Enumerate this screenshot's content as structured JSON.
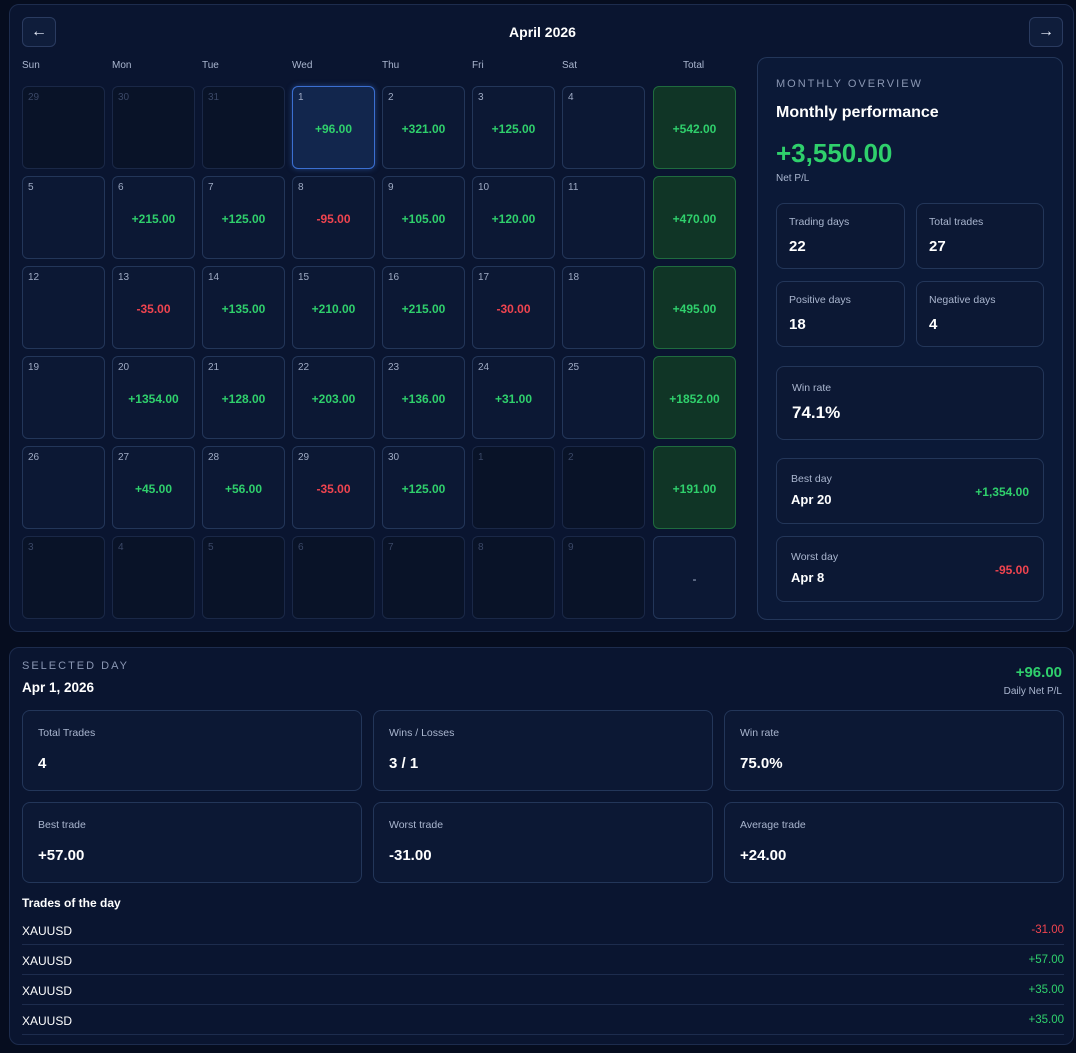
{
  "header": {
    "month_title": "April 2026",
    "prev_label": "←",
    "next_label": "→"
  },
  "weekdays": [
    "Sun",
    "Mon",
    "Tue",
    "Wed",
    "Thu",
    "Fri",
    "Sat",
    "Total"
  ],
  "weeks": [
    {
      "days": [
        {
          "d": "29",
          "v": "",
          "other": true
        },
        {
          "d": "30",
          "v": "",
          "other": true
        },
        {
          "d": "31",
          "v": "",
          "other": true
        },
        {
          "d": "1",
          "v": "+96.00",
          "sel": true
        },
        {
          "d": "2",
          "v": "+321.00"
        },
        {
          "d": "3",
          "v": "+125.00"
        },
        {
          "d": "4",
          "v": ""
        }
      ],
      "total": "+542.00"
    },
    {
      "days": [
        {
          "d": "5",
          "v": ""
        },
        {
          "d": "6",
          "v": "+215.00"
        },
        {
          "d": "7",
          "v": "+125.00"
        },
        {
          "d": "8",
          "v": "-95.00"
        },
        {
          "d": "9",
          "v": "+105.00"
        },
        {
          "d": "10",
          "v": "+120.00"
        },
        {
          "d": "11",
          "v": ""
        }
      ],
      "total": "+470.00"
    },
    {
      "days": [
        {
          "d": "12",
          "v": ""
        },
        {
          "d": "13",
          "v": "-35.00"
        },
        {
          "d": "14",
          "v": "+135.00"
        },
        {
          "d": "15",
          "v": "+210.00"
        },
        {
          "d": "16",
          "v": "+215.00"
        },
        {
          "d": "17",
          "v": "-30.00"
        },
        {
          "d": "18",
          "v": ""
        }
      ],
      "total": "+495.00"
    },
    {
      "days": [
        {
          "d": "19",
          "v": ""
        },
        {
          "d": "20",
          "v": "+1354.00"
        },
        {
          "d": "21",
          "v": "+128.00"
        },
        {
          "d": "22",
          "v": "+203.00"
        },
        {
          "d": "23",
          "v": "+136.00"
        },
        {
          "d": "24",
          "v": "+31.00"
        },
        {
          "d": "25",
          "v": ""
        }
      ],
      "total": "+1852.00"
    },
    {
      "days": [
        {
          "d": "26",
          "v": ""
        },
        {
          "d": "27",
          "v": "+45.00"
        },
        {
          "d": "28",
          "v": "+56.00"
        },
        {
          "d": "29",
          "v": "-35.00"
        },
        {
          "d": "30",
          "v": "+125.00"
        },
        {
          "d": "1",
          "v": "",
          "other": true
        },
        {
          "d": "2",
          "v": "",
          "other": true
        }
      ],
      "total": "+191.00"
    },
    {
      "days": [
        {
          "d": "3",
          "v": "",
          "other": true
        },
        {
          "d": "4",
          "v": "",
          "other": true
        },
        {
          "d": "5",
          "v": "",
          "other": true
        },
        {
          "d": "6",
          "v": "",
          "other": true
        },
        {
          "d": "7",
          "v": "",
          "other": true
        },
        {
          "d": "8",
          "v": "",
          "other": true
        },
        {
          "d": "9",
          "v": "",
          "other": true
        }
      ],
      "total": "-"
    }
  ],
  "overview": {
    "label": "MONTHLY OVERVIEW",
    "title": "Monthly performance",
    "net_value": "+3,550.00",
    "net_label": "Net P/L",
    "trading_days_label": "Trading days",
    "trading_days": "22",
    "total_trades_label": "Total trades",
    "total_trades": "27",
    "positive_days_label": "Positive days",
    "positive_days": "18",
    "negative_days_label": "Negative days",
    "negative_days": "4",
    "win_rate_label": "Win rate",
    "win_rate": "74.1%",
    "best_day_label": "Best day",
    "best_day_date": "Apr 20",
    "best_day_value": "+1,354.00",
    "worst_day_label": "Worst day",
    "worst_day_date": "Apr 8",
    "worst_day_value": "-95.00"
  },
  "selected_day": {
    "label": "SELECTED DAY",
    "date": "Apr 1, 2026",
    "net": "+96.00",
    "net_label": "Daily Net P/L",
    "total_trades_label": "Total Trades",
    "total_trades": "4",
    "wins_losses_label": "Wins / Losses",
    "wins_losses": "3 / 1",
    "win_rate_label": "Win rate",
    "win_rate": "75.0%",
    "best_trade_label": "Best trade",
    "best_trade": "+57.00",
    "worst_trade_label": "Worst trade",
    "worst_trade": "-31.00",
    "average_trade_label": "Average trade",
    "average_trade": "+24.00",
    "trades_title": "Trades of the day",
    "trades": [
      {
        "symbol": "XAUUSD",
        "amount": "-31.00"
      },
      {
        "symbol": "XAUUSD",
        "amount": "+57.00"
      },
      {
        "symbol": "XAUUSD",
        "amount": "+35.00"
      },
      {
        "symbol": "XAUUSD",
        "amount": "+35.00"
      }
    ]
  },
  "colors": {
    "positive": "#2fd06c",
    "negative": "#f0444f",
    "accent": "#3b6fd1"
  }
}
